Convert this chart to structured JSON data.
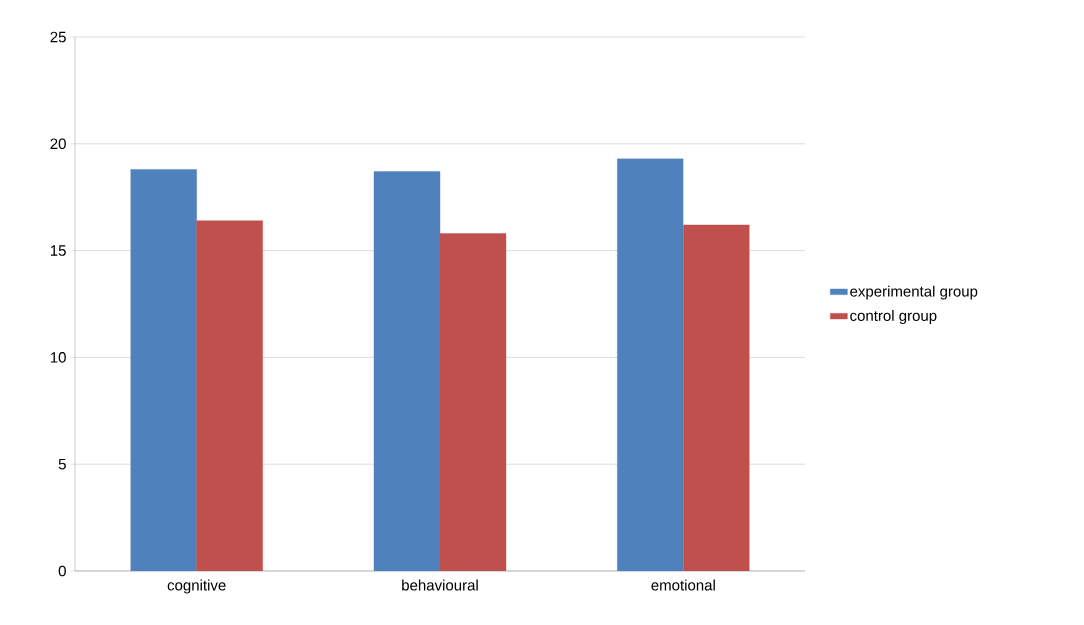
{
  "chart_data": {
    "type": "bar",
    "categories": [
      "cognitive",
      "behavioural",
      "emotional"
    ],
    "series": [
      {
        "name": "experimental group",
        "color": "#4f81bd",
        "values": [
          18.8,
          18.7,
          19.3
        ]
      },
      {
        "name": "control group",
        "color": "#c0504d",
        "values": [
          16.4,
          15.8,
          16.2
        ]
      }
    ],
    "ylim": [
      0,
      25
    ],
    "yticks": [
      0,
      5,
      10,
      15,
      20,
      25
    ],
    "grid": "y",
    "legend": "right"
  }
}
